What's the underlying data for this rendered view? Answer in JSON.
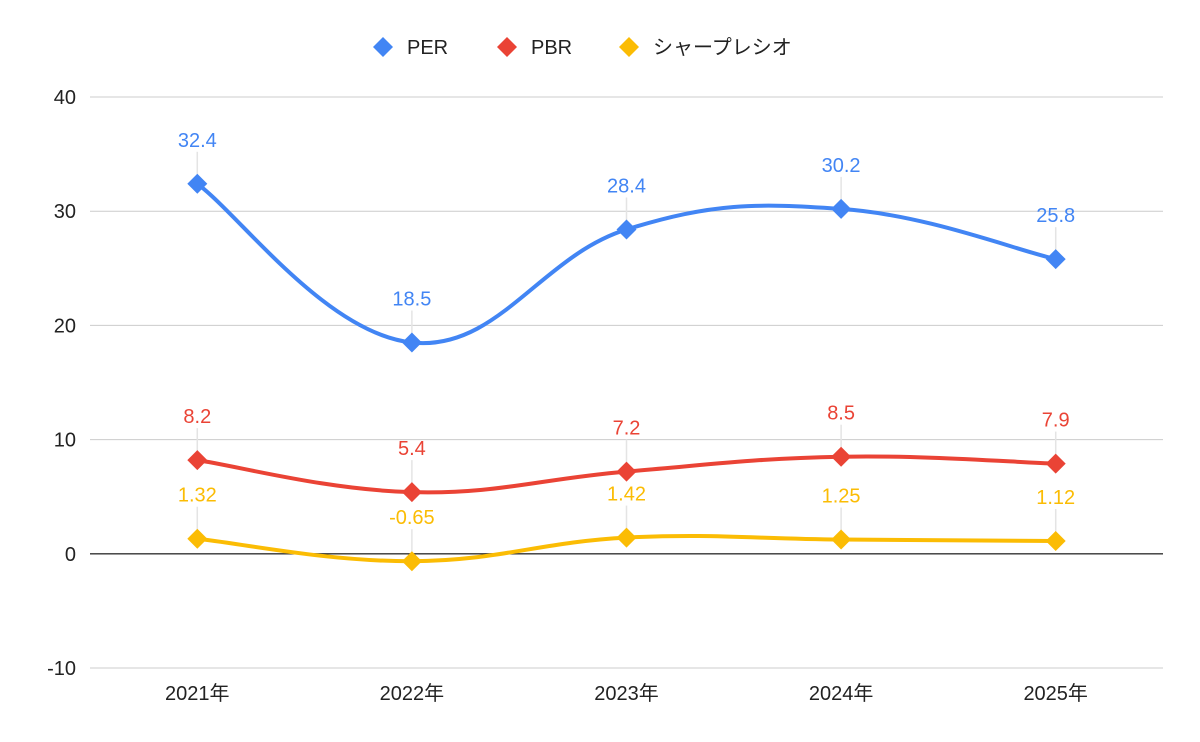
{
  "chart_data": {
    "type": "line",
    "title": "",
    "xlabel": "",
    "ylabel": "",
    "categories": [
      "2021年",
      "2022年",
      "2023年",
      "2024年",
      "2025年"
    ],
    "ylim": [
      -10,
      40
    ],
    "yticks": [
      40,
      30,
      20,
      10,
      0,
      -10
    ],
    "grid": true,
    "smooth": true,
    "legend_position": "top",
    "series": [
      {
        "name": "PER",
        "color": "#4285F4",
        "values": [
          32.4,
          18.5,
          28.4,
          30.2,
          25.8
        ],
        "labels": [
          "32.4",
          "18.5",
          "28.4",
          "30.2",
          "25.8"
        ]
      },
      {
        "name": "PBR",
        "color": "#EA4335",
        "values": [
          8.2,
          5.4,
          7.2,
          8.5,
          7.9
        ],
        "labels": [
          "8.2",
          "5.4",
          "7.2",
          "8.5",
          "7.9"
        ]
      },
      {
        "name": "シャープレシオ",
        "color": "#FBBC04",
        "values": [
          1.32,
          -0.65,
          1.42,
          1.25,
          1.12
        ],
        "labels": [
          "1.32",
          "-0.65",
          "1.42",
          "1.25",
          "1.12"
        ]
      }
    ]
  }
}
